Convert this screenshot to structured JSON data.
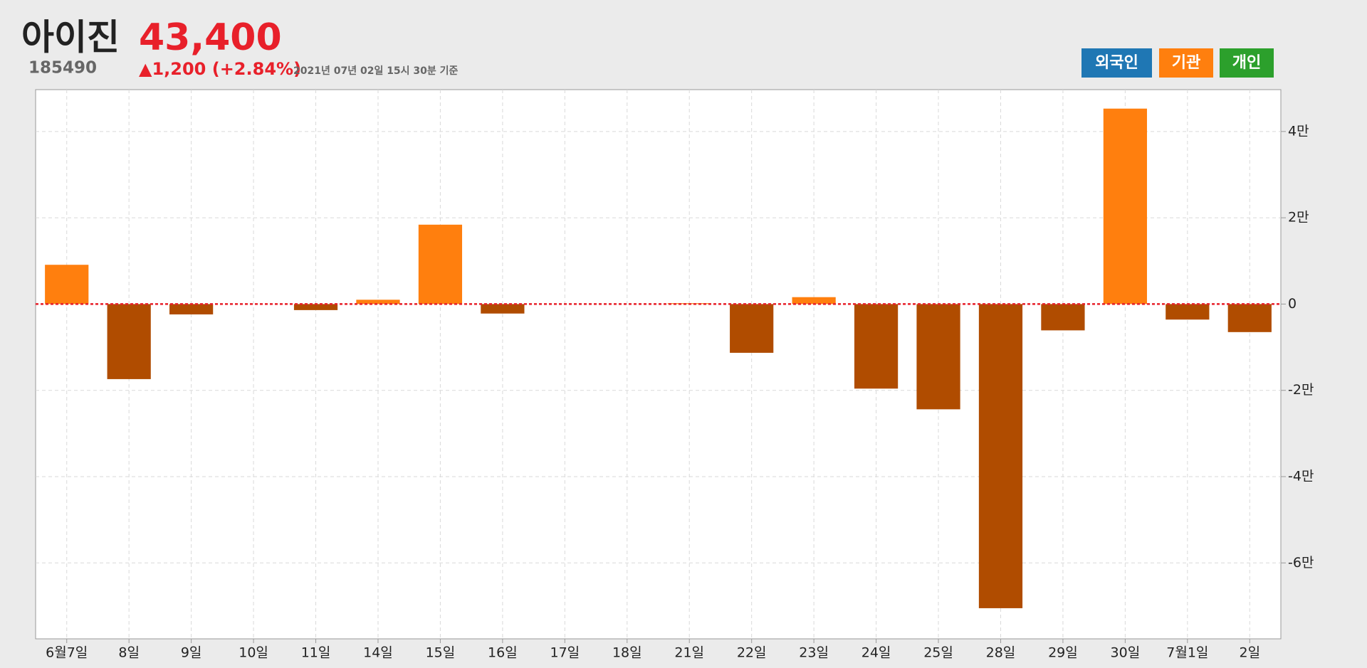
{
  "header": {
    "title": "아이진",
    "code": "185490",
    "price": "43,400",
    "change": "▲1,200 (+2.84%)",
    "timestamp": "2021년 07년 02일 15시 30분 기준"
  },
  "buttons": [
    {
      "label": "외국인",
      "color": "#1f77b4"
    },
    {
      "label": "기관",
      "color": "#ff7f0e"
    },
    {
      "label": "개인",
      "color": "#2ca02c"
    }
  ],
  "chart_data": {
    "type": "bar",
    "categories": [
      "6월7일",
      "8일",
      "9일",
      "10일",
      "11일",
      "14일",
      "15일",
      "16일",
      "17일",
      "18일",
      "21일",
      "22일",
      "23일",
      "24일",
      "25일",
      "28일",
      "29일",
      "30일",
      "7월1일",
      "2일"
    ],
    "values": [
      9100,
      -17400,
      -2400,
      0,
      -1400,
      1000,
      18400,
      -2200,
      0,
      0,
      200,
      -11300,
      1600,
      -19600,
      -24400,
      -70500,
      -6100,
      45300,
      -3600,
      -6500
    ],
    "positive_color": "#ff7f0e",
    "negative_color": "#b04c00",
    "zero_line_color": "#e8202a",
    "ylim": [
      -77600,
      49700
    ],
    "yticks": [
      {
        "value": -60000,
        "label": "-6만"
      },
      {
        "value": -40000,
        "label": "-4만"
      },
      {
        "value": -20000,
        "label": "-2만"
      },
      0,
      {
        "value": 20000,
        "label": "2만"
      },
      {
        "value": 40000,
        "label": "4만"
      }
    ],
    "grid": true
  }
}
